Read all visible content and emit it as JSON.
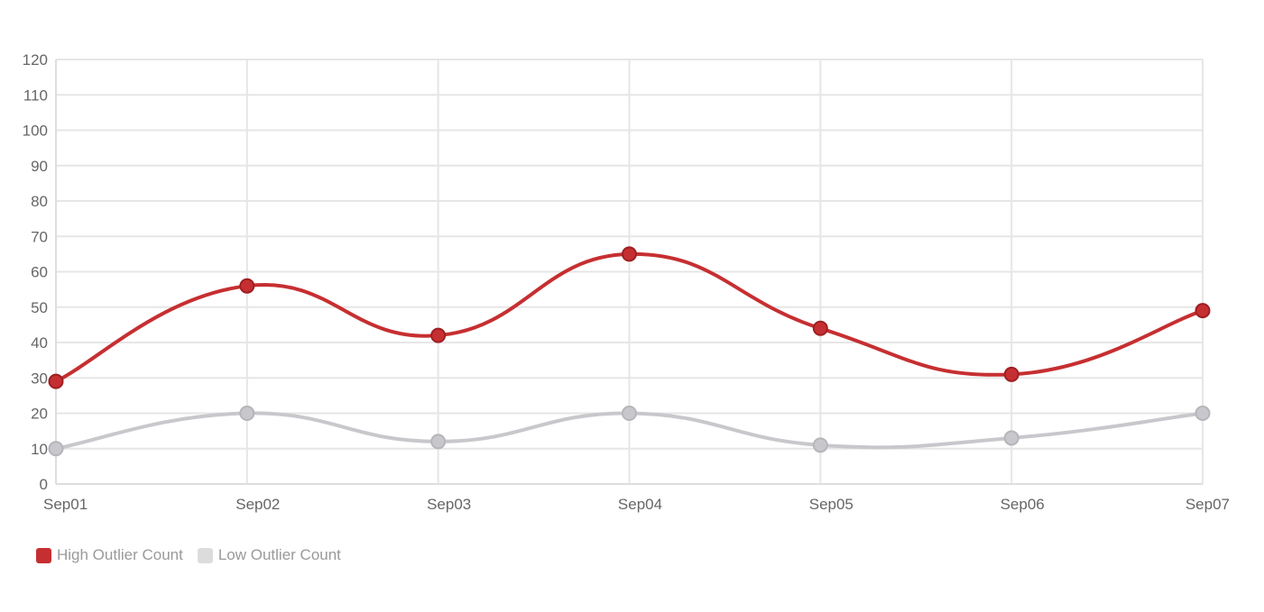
{
  "chart_data": {
    "type": "line",
    "categories": [
      "Sep01",
      "Sep02",
      "Sep03",
      "Sep04",
      "Sep05",
      "Sep06",
      "Sep07"
    ],
    "series": [
      {
        "name": "High Outlier Count",
        "values": [
          29,
          56,
          42,
          65,
          44,
          31,
          49
        ],
        "color": "#c62f31"
      },
      {
        "name": "Low Outlier Count",
        "values": [
          10,
          20,
          12,
          20,
          11,
          13,
          20
        ],
        "color": "#c8c8cc"
      }
    ],
    "y_ticks": [
      0,
      10,
      20,
      30,
      40,
      50,
      60,
      70,
      80,
      90,
      100,
      110,
      120
    ],
    "ylim": [
      0,
      120
    ],
    "grid": true,
    "smooth": true,
    "legend_position": "bottom-left"
  }
}
